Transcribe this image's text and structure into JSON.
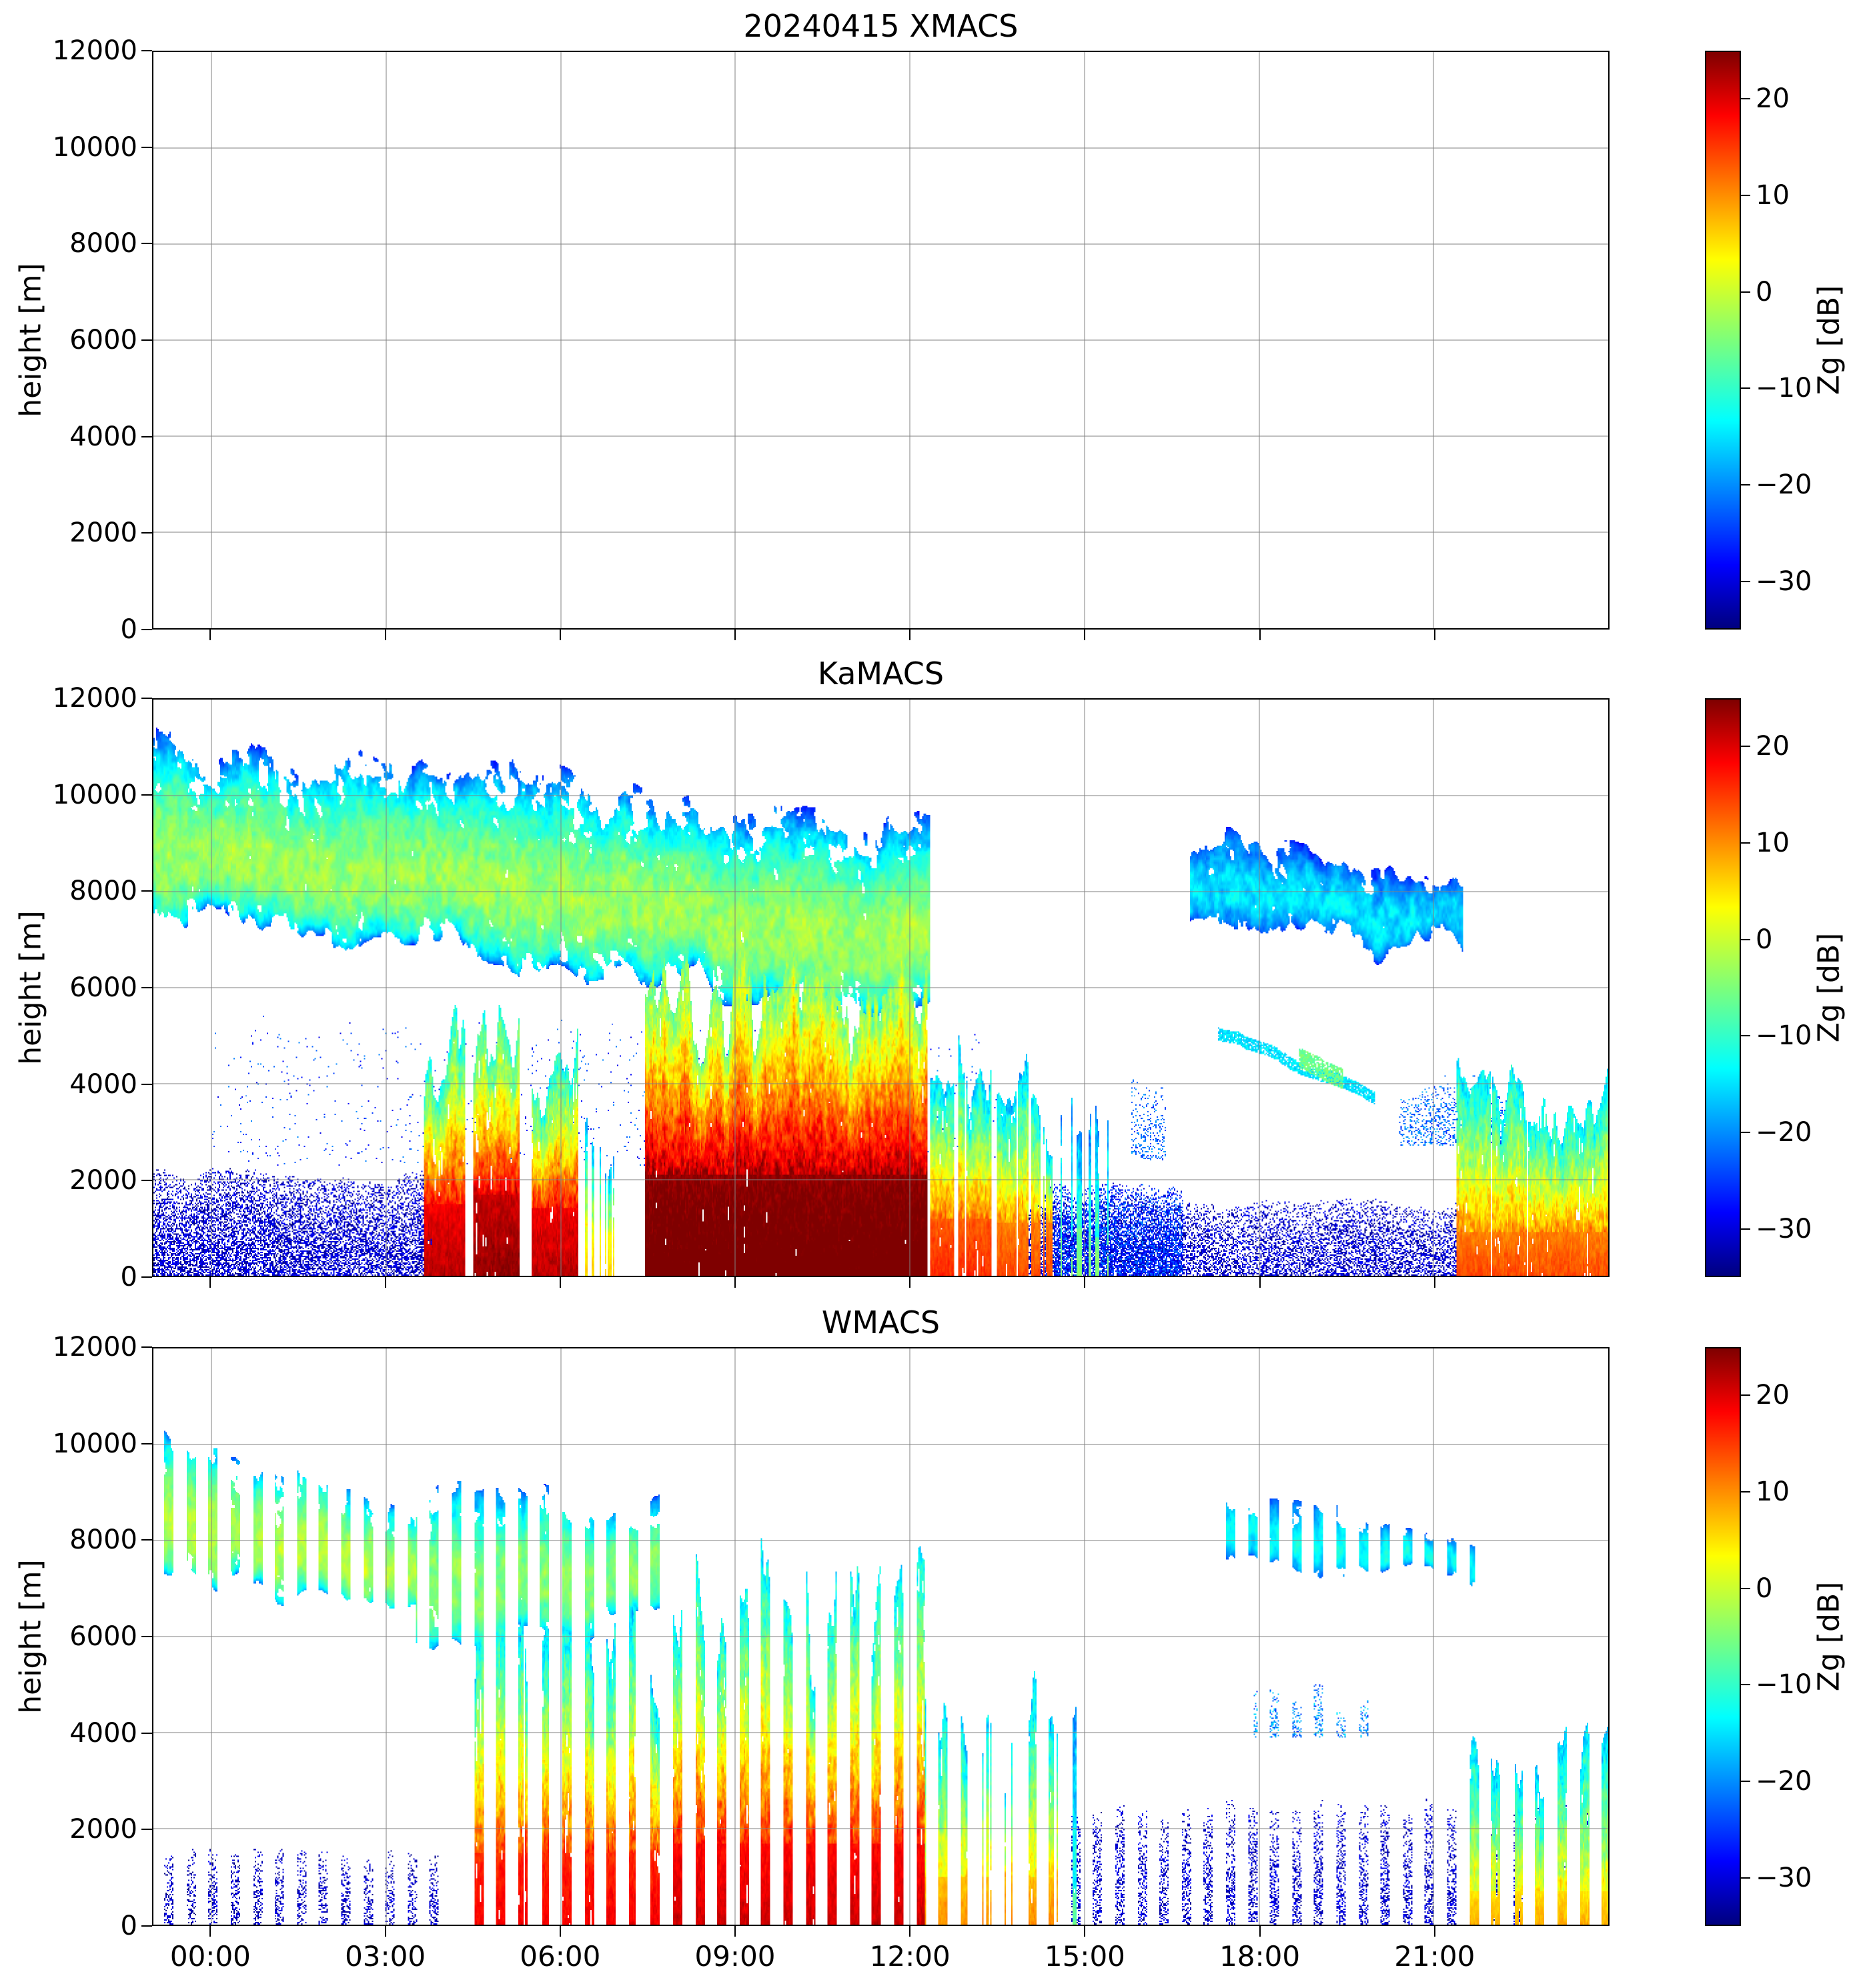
{
  "chart_data": [
    {
      "type": "heatmap",
      "title": "20240415 XMACS",
      "ylabel": "height [m]",
      "ylim": [
        0,
        12000
      ],
      "xlim_hours": [
        -1,
        24
      ],
      "ytick_values": [
        0,
        2000,
        4000,
        6000,
        8000,
        10000,
        12000
      ],
      "ytick_labels": [
        "0",
        "2000",
        "4000",
        "6000",
        "8000",
        "10000",
        "12000"
      ],
      "xtick_hours": [
        0,
        3,
        6,
        9,
        12,
        15,
        18,
        21
      ],
      "xtick_labels": [
        "00:00",
        "03:00",
        "06:00",
        "09:00",
        "12:00",
        "15:00",
        "18:00",
        "21:00"
      ],
      "show_xtick_labels": false,
      "grid": true,
      "colorbar": {
        "label": "Zg [dB]",
        "vmin": -35,
        "vmax": 25,
        "tick_values": [
          20,
          10,
          0,
          -10,
          -20,
          -30
        ],
        "tick_labels": [
          "20",
          "10",
          "0",
          "−10",
          "−20",
          "−30"
        ],
        "colormap": "jet"
      },
      "empty": true,
      "features": []
    },
    {
      "type": "heatmap",
      "title": "KaMACS",
      "ylabel": "height [m]",
      "ylim": [
        0,
        12000
      ],
      "xlim_hours": [
        -1,
        24
      ],
      "ytick_values": [
        0,
        2000,
        4000,
        6000,
        8000,
        10000,
        12000
      ],
      "ytick_labels": [
        "0",
        "2000",
        "4000",
        "6000",
        "8000",
        "10000",
        "12000"
      ],
      "xtick_hours": [
        0,
        3,
        6,
        9,
        12,
        15,
        18,
        21
      ],
      "xtick_labels": [
        "00:00",
        "03:00",
        "06:00",
        "09:00",
        "12:00",
        "15:00",
        "18:00",
        "21:00"
      ],
      "show_xtick_labels": false,
      "grid": true,
      "colorbar": {
        "label": "Zg [dB]",
        "vmin": -35,
        "vmax": 25,
        "tick_values": [
          20,
          10,
          0,
          -10,
          -20,
          -30
        ],
        "tick_labels": [
          "20",
          "10",
          "0",
          "−10",
          "−20",
          "−30"
        ],
        "colormap": "jet"
      },
      "empty": false,
      "features": [
        {
          "kind": "cloud",
          "t": [
            -1,
            12.35
          ],
          "top": [
            11000,
            9400
          ],
          "bot": [
            7600,
            5500
          ],
          "core": -3,
          "edge": -27,
          "seed": 11,
          "wav": 0.06
        },
        {
          "kind": "columns",
          "t": [
            7.45,
            12.3
          ],
          "htop": 6600,
          "dbl": 27,
          "dbh": -6,
          "hred": 2100,
          "density": 0.93,
          "gap": 0.14,
          "seed": 21
        },
        {
          "kind": "columns",
          "t": [
            3.65,
            4.35
          ],
          "htop": 5300,
          "dbl": 22,
          "dbh": -12,
          "hred": 1500,
          "density": 0.8,
          "seed": 22
        },
        {
          "kind": "columns",
          "t": [
            4.5,
            5.3
          ],
          "htop": 5500,
          "dbl": 24,
          "dbh": -10,
          "hred": 1700,
          "density": 0.85,
          "seed": 23
        },
        {
          "kind": "columns",
          "t": [
            5.5,
            6.3
          ],
          "htop": 4700,
          "dbl": 22,
          "dbh": -12,
          "hred": 1400,
          "density": 0.8,
          "seed": 24
        },
        {
          "kind": "columns",
          "t": [
            6.4,
            7.2
          ],
          "htop": 3400,
          "dbl": 6,
          "dbh": -18,
          "hred": 900,
          "density": 0.45,
          "seed": 25
        },
        {
          "kind": "columns",
          "t": [
            12.35,
            13.4
          ],
          "htop": 4400,
          "dbl": 16,
          "dbh": -16,
          "hred": 1200,
          "density": 0.7,
          "seed": 26
        },
        {
          "kind": "columns",
          "t": [
            13.5,
            14.45
          ],
          "htop": 4100,
          "dbl": 14,
          "dbh": -16,
          "hred": 1100,
          "density": 0.65,
          "seed": 27
        },
        {
          "kind": "columns",
          "t": [
            14.6,
            15.7
          ],
          "htop": 3900,
          "dbl": -4,
          "dbh": -20,
          "hred": 800,
          "density": 0.35,
          "seed": 28
        },
        {
          "kind": "speckle",
          "t": [
            -1,
            3.8
          ],
          "h": [
            0,
            2100
          ],
          "db": [
            -35,
            -27
          ],
          "density": 0.6,
          "seed": 31
        },
        {
          "kind": "speckle",
          "t": [
            14.3,
            16.7
          ],
          "h": [
            0,
            1900
          ],
          "db": [
            -32,
            -20
          ],
          "density": 0.65,
          "seed": 32
        },
        {
          "kind": "speckle",
          "t": [
            14,
            21.4
          ],
          "h": [
            0,
            1500
          ],
          "db": [
            -35,
            -27
          ],
          "density": 0.5,
          "seed": 33
        },
        {
          "kind": "cloud",
          "t": [
            16.8,
            21.5
          ],
          "top": [
            9400,
            8200
          ],
          "bot": [
            7500,
            6800
          ],
          "core": -15,
          "edge": -28,
          "seed": 34,
          "wav": 0.05
        },
        {
          "kind": "streak",
          "t": [
            17.3,
            20.0
          ],
          "h": [
            5100,
            3700
          ],
          "th": 260,
          "db": -15,
          "seed": 35
        },
        {
          "kind": "streak",
          "t": [
            18.7,
            19.45
          ],
          "h": [
            4500,
            4100
          ],
          "th": 420,
          "db": -6,
          "seed": 36
        },
        {
          "kind": "columns",
          "t": [
            21.4,
            24
          ],
          "htop": 4200,
          "dbl": 14,
          "dbh": -14,
          "hred": 900,
          "density": 0.85,
          "seed": 37
        },
        {
          "kind": "speckle",
          "t": [
            0,
            13.5
          ],
          "h": [
            2300,
            5200
          ],
          "db": [
            -30,
            -20
          ],
          "density": 0.02,
          "seed": 38
        },
        {
          "kind": "speckle",
          "t": [
            20.4,
            22.4
          ],
          "h": [
            2700,
            3900
          ],
          "db": [
            -27,
            -17
          ],
          "density": 0.3,
          "seed": 39
        },
        {
          "kind": "speckle",
          "t": [
            15.8,
            16.4
          ],
          "h": [
            2400,
            3900
          ],
          "db": [
            -26,
            -18
          ],
          "density": 0.2,
          "seed": 40
        }
      ]
    },
    {
      "type": "heatmap",
      "title": "WMACS",
      "ylabel": "height [m]",
      "ylim": [
        0,
        12000
      ],
      "xlim_hours": [
        -1,
        24
      ],
      "ytick_values": [
        0,
        2000,
        4000,
        6000,
        8000,
        10000,
        12000
      ],
      "ytick_labels": [
        "0",
        "2000",
        "4000",
        "6000",
        "8000",
        "10000",
        "12000"
      ],
      "xtick_hours": [
        0,
        3,
        6,
        9,
        12,
        15,
        18,
        21
      ],
      "xtick_labels": [
        "00:00",
        "03:00",
        "06:00",
        "09:00",
        "12:00",
        "15:00",
        "18:00",
        "21:00"
      ],
      "show_xtick_labels": true,
      "grid": true,
      "colorbar": {
        "label": "Zg [dB]",
        "vmin": -35,
        "vmax": 25,
        "tick_values": [
          20,
          10,
          0,
          -10,
          -20,
          -30
        ],
        "tick_labels": [
          "20",
          "10",
          "0",
          "−10",
          "−20",
          "−30"
        ],
        "colormap": "jet"
      },
      "empty": false,
      "stripes": {
        "period": 0.38,
        "duty": 0.42,
        "phase": 0.05
      },
      "features": [
        {
          "kind": "cloud",
          "t": [
            -1,
            3.5
          ],
          "top": [
            10300,
            8700
          ],
          "bot": [
            7300,
            6500
          ],
          "core": -1,
          "edge": -23,
          "seed": 51,
          "wav": 0.04,
          "stripe": true
        },
        {
          "kind": "cloud",
          "t": [
            3.5,
            7.7
          ],
          "top": [
            9400,
            8800
          ],
          "bot": [
            5700,
            6400
          ],
          "core": -4,
          "edge": -24,
          "seed": 52,
          "wav": 0.05,
          "stripe": true
        },
        {
          "kind": "columns",
          "t": [
            4.3,
            7.7
          ],
          "htop": 6600,
          "dbl": 19,
          "dbh": -16,
          "hred": 1500,
          "density": 0.65,
          "seed": 53,
          "stripe": true
        },
        {
          "kind": "columns",
          "t": [
            7.7,
            12.25
          ],
          "htop": 7600,
          "dbl": 21,
          "dbh": -14,
          "hred": 1700,
          "density": 0.9,
          "seed": 54,
          "stripe": true
        },
        {
          "kind": "columns",
          "t": [
            12.25,
            14.6
          ],
          "htop": 4600,
          "dbl": 10,
          "dbh": -16,
          "hred": 1000,
          "density": 0.6,
          "seed": 55,
          "stripe": true
        },
        {
          "kind": "columns",
          "t": [
            14.65,
            15.15
          ],
          "htop": 4400,
          "dbl": -6,
          "dbh": -20,
          "hred": 700,
          "density": 0.5,
          "seed": 56,
          "stripe": true
        },
        {
          "kind": "speckle",
          "t": [
            -1,
            3.9
          ],
          "h": [
            0,
            1500
          ],
          "db": [
            -35,
            -28
          ],
          "density": 0.4,
          "seed": 57,
          "stripe": true
        },
        {
          "kind": "speckle",
          "t": [
            14.6,
            24
          ],
          "h": [
            0,
            2400
          ],
          "db": [
            -35,
            -27
          ],
          "density": 0.45,
          "seed": 58,
          "stripe": true
        },
        {
          "kind": "cloud",
          "t": [
            17.4,
            21.7
          ],
          "top": [
            9200,
            8000
          ],
          "bot": [
            7700,
            7000
          ],
          "core": -13,
          "edge": -26,
          "seed": 59,
          "wav": 0.04,
          "stripe": true
        },
        {
          "kind": "speckle",
          "t": [
            17.9,
            19.9
          ],
          "h": [
            3900,
            4700
          ],
          "db": [
            -26,
            -14
          ],
          "density": 0.35,
          "seed": 60,
          "stripe": true
        },
        {
          "kind": "columns",
          "t": [
            21.6,
            24
          ],
          "htop": 4100,
          "dbl": 8,
          "dbh": -16,
          "hred": 700,
          "density": 0.8,
          "seed": 61,
          "stripe": true
        }
      ]
    }
  ]
}
